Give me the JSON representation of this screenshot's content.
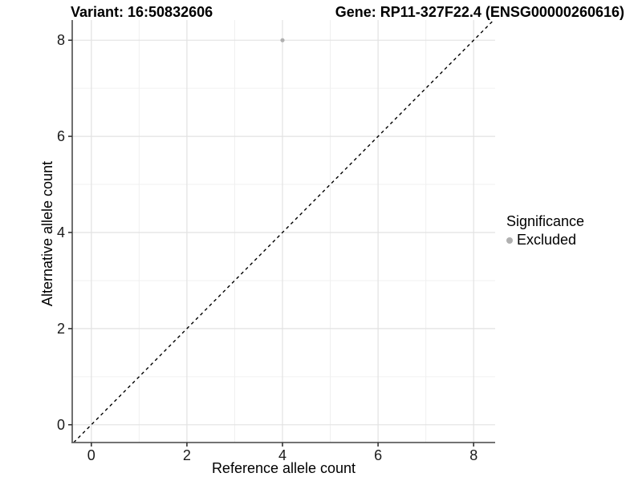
{
  "figure": {
    "title_left": "Variant: 16:50832606",
    "title_right": "Gene: RP11-327F22.4 (ENSG00000260616)"
  },
  "chart_data": {
    "type": "scatter",
    "xlabel": "Reference allele count",
    "ylabel": "Alternative allele count",
    "xlim": [
      -0.4,
      8.45
    ],
    "ylim": [
      -0.37,
      8.42
    ],
    "xticks": [
      0,
      2,
      4,
      6,
      8
    ],
    "yticks": [
      0,
      2,
      4,
      6,
      8
    ],
    "minor_grid_step": 1,
    "grid": true,
    "identity_line": {
      "style": "dashed",
      "color": "#000000"
    },
    "series": [
      {
        "name": "Excluded",
        "color": "#b0b0b0",
        "points": [
          {
            "x": 4,
            "y": 8
          }
        ]
      }
    ],
    "legend": {
      "title": "Significance",
      "position": "right",
      "items": [
        {
          "label": "Excluded",
          "color": "#b0b0b0"
        }
      ]
    }
  },
  "colors": {
    "grid_major": "#e2e2e2",
    "grid_minor": "#f0f0f0",
    "axis_line": "#5f5f5f",
    "tick_mark": "#333333",
    "tick_label": "#1a1a1a"
  }
}
